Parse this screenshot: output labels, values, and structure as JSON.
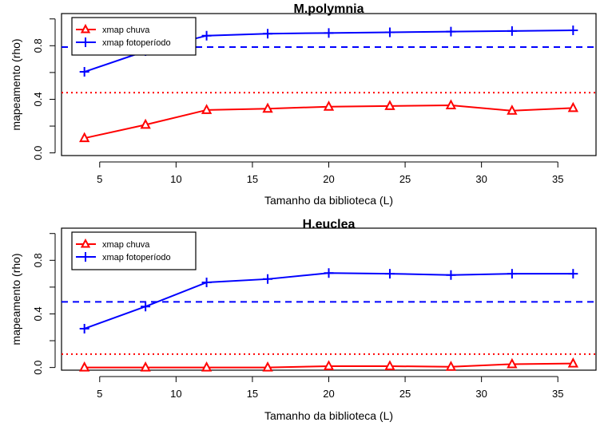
{
  "chart_data": [
    {
      "type": "line",
      "title": "M.polymnia",
      "xlabel": "Tamanho da biblioteca (L)",
      "ylabel": "mapeamento (rho)",
      "xlim": [
        2.5,
        37.5
      ],
      "ylim": [
        -0.02,
        1.04
      ],
      "xticks": [
        5,
        10,
        15,
        20,
        25,
        30,
        35
      ],
      "yticks": [
        0.0,
        0.4,
        0.8
      ],
      "ytick_labels": [
        "0.0",
        "0.4",
        "0.8"
      ],
      "x": [
        4,
        8,
        12,
        16,
        20,
        24,
        28,
        32,
        36
      ],
      "series": [
        {
          "name": "xmap chuva",
          "color": "#ff0000",
          "marker": "triangle",
          "values": [
            0.11,
            0.21,
            0.32,
            0.33,
            0.345,
            0.35,
            0.355,
            0.315,
            0.335
          ]
        },
        {
          "name": "xmap fotoperíodo",
          "color": "#0000ff",
          "marker": "plus",
          "values": [
            0.605,
            0.76,
            0.875,
            0.89,
            0.895,
            0.9,
            0.905,
            0.91,
            0.915
          ]
        }
      ],
      "reference_lines": [
        {
          "y": 0.79,
          "style": "dashed",
          "color": "#0000ff"
        },
        {
          "y": 0.45,
          "style": "dotted",
          "color": "#ff0000"
        }
      ],
      "legend_position": "top-left"
    },
    {
      "type": "line",
      "title": "H.euclea",
      "xlabel": "Tamanho da biblioteca (L)",
      "ylabel": "mapeamento (rho)",
      "xlim": [
        2.5,
        37.5
      ],
      "ylim": [
        -0.02,
        1.04
      ],
      "xticks": [
        5,
        10,
        15,
        20,
        25,
        30,
        35
      ],
      "yticks": [
        0.0,
        0.4,
        0.8
      ],
      "ytick_labels": [
        "0.0",
        "0.4",
        "0.8"
      ],
      "x": [
        4,
        8,
        12,
        16,
        20,
        24,
        28,
        32,
        36
      ],
      "series": [
        {
          "name": "xmap chuva",
          "color": "#ff0000",
          "marker": "triangle",
          "values": [
            0.0,
            0.0,
            0.0,
            0.0,
            0.01,
            0.01,
            0.005,
            0.025,
            0.03
          ]
        },
        {
          "name": "xmap fotoperíodo",
          "color": "#0000ff",
          "marker": "plus",
          "values": [
            0.29,
            0.455,
            0.635,
            0.66,
            0.705,
            0.7,
            0.69,
            0.7,
            0.7
          ]
        }
      ],
      "reference_lines": [
        {
          "y": 0.49,
          "style": "dashed",
          "color": "#0000ff"
        },
        {
          "y": 0.1,
          "style": "dotted",
          "color": "#ff0000"
        }
      ],
      "legend_position": "top-left"
    }
  ]
}
